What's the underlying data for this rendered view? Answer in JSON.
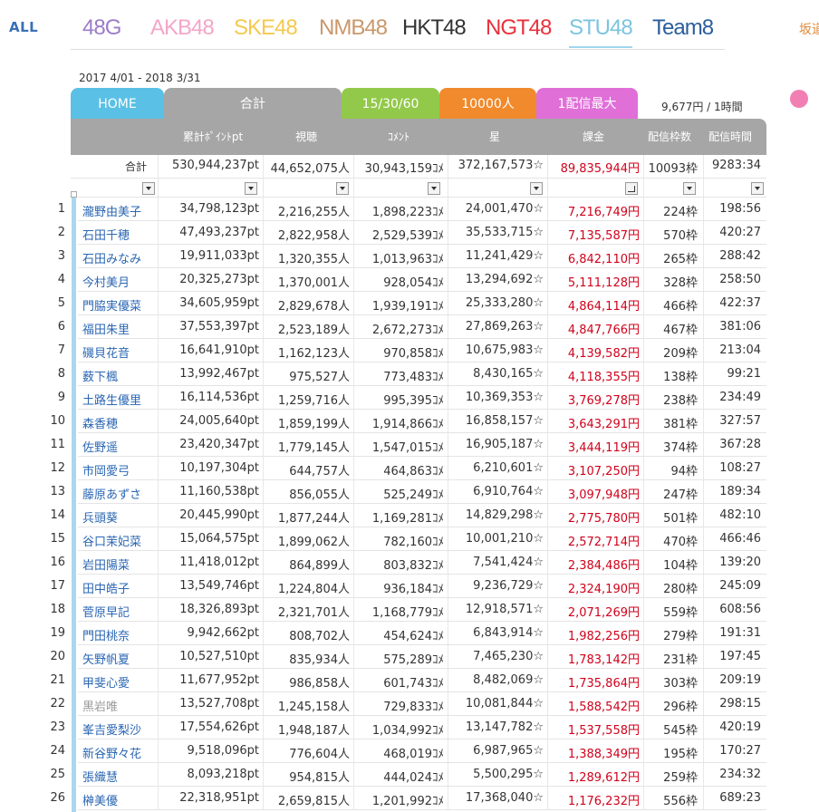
{
  "nav": {
    "all_label": "ALL",
    "groups": [
      {
        "label": "48G",
        "color": "#9c7cc9"
      },
      {
        "label": "AKB48",
        "color": "#f4a6c8"
      },
      {
        "label": "SKE48",
        "color": "#f5c94e"
      },
      {
        "label": "NMB48",
        "color": "#c9986a"
      },
      {
        "label": "HKT48",
        "color": "#333333"
      },
      {
        "label": "NGT48",
        "color": "#e8313c"
      },
      {
        "label": "STU48",
        "color": "#7cc4e0"
      },
      {
        "label": "Team8",
        "color": "#2a5e9c"
      }
    ],
    "active_group": "STU48",
    "far_right_label": "坂道"
  },
  "period": "2017 4/01 - 2018 3/31",
  "tabs": [
    {
      "label": "HOME",
      "color": "#5bc0e5"
    },
    {
      "label": "合計",
      "color": "#a6a6a6"
    },
    {
      "label": "15/30/60",
      "color": "#93c94a"
    },
    {
      "label": "10000人",
      "color": "#f08a2c"
    },
    {
      "label": "1配信最大",
      "color": "#e06fd8"
    }
  ],
  "rate_text": "9,677円 / 1時間",
  "columns": [
    "累計ﾎﾟｲﾝﾄpt",
    "視聴",
    "ｺﾒﾝﾄ",
    "星",
    "課金",
    "配信枠数",
    "配信時間"
  ],
  "totals": {
    "label": "合計",
    "points": "530,944,237pt",
    "views": "44,652,075人",
    "comments": "30,943,159ｺﾒ",
    "stars": "372,167,573☆",
    "billing": "89,835,944円",
    "slots": "10093枠",
    "time": "9283:34"
  },
  "rows": [
    {
      "rank": "1",
      "name": "瀧野由美子",
      "points": "34,798,123pt",
      "views": "2,216,255人",
      "comments": "1,898,223ｺﾒ",
      "stars": "24,001,470☆",
      "billing": "7,216,749円",
      "slots": "224枠",
      "time": "198:56"
    },
    {
      "rank": "2",
      "name": "石田千穂",
      "points": "47,493,237pt",
      "views": "2,822,958人",
      "comments": "2,529,539ｺﾒ",
      "stars": "35,533,715☆",
      "billing": "7,135,587円",
      "slots": "570枠",
      "time": "420:27"
    },
    {
      "rank": "3",
      "name": "石田みなみ",
      "points": "19,911,033pt",
      "views": "1,320,355人",
      "comments": "1,013,963ｺﾒ",
      "stars": "11,241,429☆",
      "billing": "6,842,110円",
      "slots": "265枠",
      "time": "288:42"
    },
    {
      "rank": "4",
      "name": "今村美月",
      "points": "20,325,273pt",
      "views": "1,370,001人",
      "comments": "928,054ｺﾒ",
      "stars": "13,294,692☆",
      "billing": "5,111,128円",
      "slots": "328枠",
      "time": "258:50"
    },
    {
      "rank": "5",
      "name": "門脇実優菜",
      "points": "34,605,959pt",
      "views": "2,829,678人",
      "comments": "1,939,191ｺﾒ",
      "stars": "25,333,280☆",
      "billing": "4,864,114円",
      "slots": "466枠",
      "time": "422:37"
    },
    {
      "rank": "6",
      "name": "福田朱里",
      "points": "37,553,397pt",
      "views": "2,523,189人",
      "comments": "2,672,273ｺﾒ",
      "stars": "27,869,263☆",
      "billing": "4,847,766円",
      "slots": "467枠",
      "time": "381:06"
    },
    {
      "rank": "7",
      "name": "磯貝花音",
      "points": "16,641,910pt",
      "views": "1,162,123人",
      "comments": "970,858ｺﾒ",
      "stars": "10,675,983☆",
      "billing": "4,139,582円",
      "slots": "209枠",
      "time": "213:04"
    },
    {
      "rank": "8",
      "name": "薮下楓",
      "points": "13,992,467pt",
      "views": "975,527人",
      "comments": "773,483ｺﾒ",
      "stars": "8,430,165☆",
      "billing": "4,118,355円",
      "slots": "138枠",
      "time": "99:21"
    },
    {
      "rank": "9",
      "name": "土路生優里",
      "points": "16,114,536pt",
      "views": "1,259,716人",
      "comments": "995,395ｺﾒ",
      "stars": "10,369,353☆",
      "billing": "3,769,278円",
      "slots": "238枠",
      "time": "234:49"
    },
    {
      "rank": "10",
      "name": "森香穂",
      "points": "24,005,640pt",
      "views": "1,859,199人",
      "comments": "1,914,866ｺﾒ",
      "stars": "16,858,157☆",
      "billing": "3,643,291円",
      "slots": "381枠",
      "time": "327:57"
    },
    {
      "rank": "11",
      "name": "佐野遥",
      "points": "23,420,347pt",
      "views": "1,779,145人",
      "comments": "1,547,015ｺﾒ",
      "stars": "16,905,187☆",
      "billing": "3,444,119円",
      "slots": "374枠",
      "time": "367:28"
    },
    {
      "rank": "12",
      "name": "市岡愛弓",
      "points": "10,197,304pt",
      "views": "644,757人",
      "comments": "464,863ｺﾒ",
      "stars": "6,210,601☆",
      "billing": "3,107,250円",
      "slots": "94枠",
      "time": "108:27"
    },
    {
      "rank": "13",
      "name": "藤原あずさ",
      "points": "11,160,538pt",
      "views": "856,055人",
      "comments": "525,249ｺﾒ",
      "stars": "6,910,764☆",
      "billing": "3,097,948円",
      "slots": "247枠",
      "time": "189:34"
    },
    {
      "rank": "14",
      "name": "兵頭葵",
      "points": "20,445,990pt",
      "views": "1,877,244人",
      "comments": "1,169,281ｺﾒ",
      "stars": "14,829,298☆",
      "billing": "2,775,780円",
      "slots": "501枠",
      "time": "482:10"
    },
    {
      "rank": "15",
      "name": "谷口茉妃菜",
      "points": "15,064,575pt",
      "views": "1,899,062人",
      "comments": "782,160ｺﾒ",
      "stars": "10,001,210☆",
      "billing": "2,572,714円",
      "slots": "470枠",
      "time": "466:46"
    },
    {
      "rank": "16",
      "name": "岩田陽菜",
      "points": "11,418,012pt",
      "views": "864,899人",
      "comments": "803,832ｺﾒ",
      "stars": "7,541,424☆",
      "billing": "2,384,486円",
      "slots": "104枠",
      "time": "139:20"
    },
    {
      "rank": "17",
      "name": "田中皓子",
      "points": "13,549,746pt",
      "views": "1,224,804人",
      "comments": "936,184ｺﾒ",
      "stars": "9,236,729☆",
      "billing": "2,324,190円",
      "slots": "280枠",
      "time": "245:09"
    },
    {
      "rank": "18",
      "name": "菅原早記",
      "points": "18,326,893pt",
      "views": "2,321,701人",
      "comments": "1,168,779ｺﾒ",
      "stars": "12,918,571☆",
      "billing": "2,071,269円",
      "slots": "559枠",
      "time": "608:56"
    },
    {
      "rank": "19",
      "name": "門田桃奈",
      "points": "9,942,662pt",
      "views": "808,702人",
      "comments": "454,624ｺﾒ",
      "stars": "6,843,914☆",
      "billing": "1,982,256円",
      "slots": "279枠",
      "time": "191:31"
    },
    {
      "rank": "20",
      "name": "矢野帆夏",
      "points": "10,527,510pt",
      "views": "835,934人",
      "comments": "575,289ｺﾒ",
      "stars": "7,465,230☆",
      "billing": "1,783,142円",
      "slots": "231枠",
      "time": "197:45"
    },
    {
      "rank": "21",
      "name": "甲斐心愛",
      "points": "11,677,952pt",
      "views": "986,858人",
      "comments": "601,743ｺﾒ",
      "stars": "8,482,069☆",
      "billing": "1,735,864円",
      "slots": "303枠",
      "time": "209:19"
    },
    {
      "rank": "22",
      "name": "黒岩唯",
      "grey": true,
      "points": "13,527,708pt",
      "views": "1,245,158人",
      "comments": "729,833ｺﾒ",
      "stars": "10,081,844☆",
      "billing": "1,588,542円",
      "slots": "296枠",
      "time": "298:15"
    },
    {
      "rank": "23",
      "name": "峯吉愛梨沙",
      "points": "17,554,626pt",
      "views": "1,948,187人",
      "comments": "1,034,992ｺﾒ",
      "stars": "13,147,782☆",
      "billing": "1,537,558円",
      "slots": "545枠",
      "time": "420:19"
    },
    {
      "rank": "24",
      "name": "新谷野々花",
      "points": "9,518,096pt",
      "views": "776,604人",
      "comments": "468,019ｺﾒ",
      "stars": "6,987,965☆",
      "billing": "1,388,349円",
      "slots": "195枠",
      "time": "170:27"
    },
    {
      "rank": "25",
      "name": "張織慧",
      "points": "8,093,218pt",
      "views": "954,815人",
      "comments": "444,024ｺﾒ",
      "stars": "5,500,295☆",
      "billing": "1,289,612円",
      "slots": "259枠",
      "time": "234:32"
    },
    {
      "rank": "26",
      "name": "榊美優",
      "points": "22,318,951pt",
      "views": "2,659,815人",
      "comments": "1,201,992ｺﾒ",
      "stars": "17,368,040☆",
      "billing": "1,176,232円",
      "slots": "556枠",
      "time": "689:23"
    }
  ]
}
